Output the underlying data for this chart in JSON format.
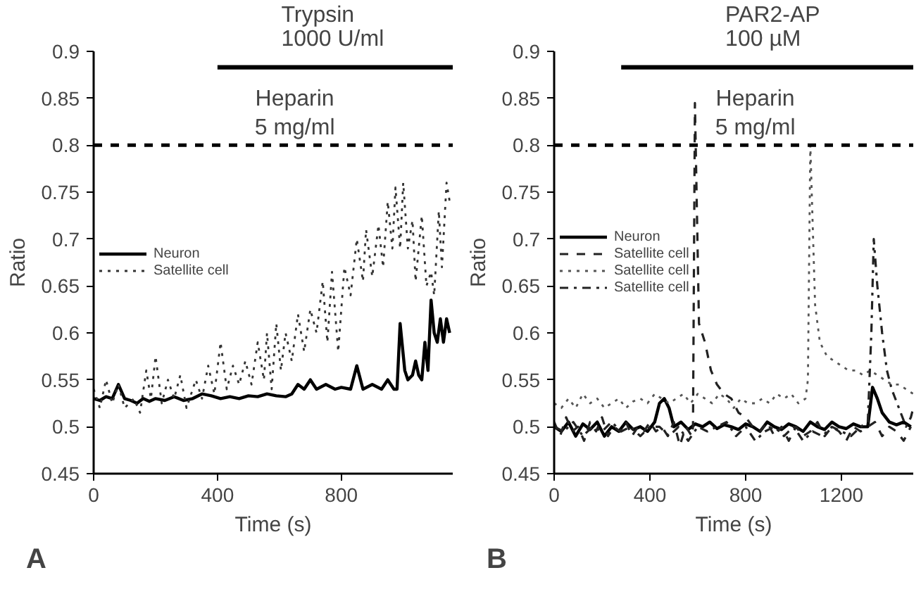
{
  "chart_data": [
    {
      "type": "line",
      "xlabel": "Time (s)",
      "ylabel": "Ratio",
      "xlim": [
        0,
        1160
      ],
      "xticks": [
        0,
        400,
        800
      ],
      "ylim": [
        0.45,
        0.9
      ],
      "yticks": [
        0.45,
        0.5,
        0.55,
        0.6,
        0.65,
        0.7,
        0.75,
        0.8,
        0.85,
        0.9
      ],
      "legend": "left",
      "series": [
        {
          "name": "Neuron",
          "color": "#000000",
          "line_style": "solid",
          "x": [
            0,
            20,
            40,
            60,
            80,
            100,
            120,
            140,
            160,
            180,
            200,
            230,
            260,
            290,
            320,
            350,
            380,
            410,
            440,
            470,
            500,
            530,
            560,
            590,
            620,
            640,
            660,
            680,
            700,
            720,
            750,
            780,
            800,
            830,
            850,
            870,
            900,
            930,
            950,
            970,
            980,
            990,
            1005,
            1015,
            1030,
            1040,
            1050,
            1060,
            1070,
            1080,
            1090,
            1100,
            1110,
            1120,
            1130,
            1140,
            1150
          ],
          "values": [
            0.53,
            0.528,
            0.532,
            0.53,
            0.545,
            0.53,
            0.528,
            0.525,
            0.53,
            0.527,
            0.53,
            0.528,
            0.532,
            0.528,
            0.53,
            0.535,
            0.533,
            0.53,
            0.532,
            0.53,
            0.533,
            0.532,
            0.535,
            0.533,
            0.532,
            0.535,
            0.545,
            0.54,
            0.55,
            0.54,
            0.545,
            0.54,
            0.542,
            0.54,
            0.565,
            0.54,
            0.545,
            0.54,
            0.55,
            0.54,
            0.54,
            0.61,
            0.56,
            0.55,
            0.555,
            0.57,
            0.555,
            0.55,
            0.59,
            0.56,
            0.635,
            0.6,
            0.59,
            0.615,
            0.59,
            0.615,
            0.6
          ]
        },
        {
          "name": "Satellite cell",
          "color": "#333333",
          "line_style": "dotted",
          "x": [
            0,
            20,
            40,
            60,
            80,
            100,
            130,
            150,
            170,
            185,
            200,
            220,
            240,
            260,
            280,
            300,
            330,
            350,
            370,
            390,
            410,
            430,
            450,
            470,
            490,
            510,
            530,
            550,
            560,
            575,
            590,
            605,
            620,
            640,
            660,
            680,
            700,
            720,
            740,
            755,
            770,
            790,
            810,
            830,
            850,
            870,
            880,
            900,
            920,
            935,
            950,
            965,
            975,
            990,
            1000,
            1015,
            1030,
            1040,
            1060,
            1075,
            1090,
            1100,
            1115,
            1125,
            1140,
            1150
          ],
          "values": [
            0.54,
            0.52,
            0.55,
            0.525,
            0.545,
            0.52,
            0.53,
            0.515,
            0.56,
            0.53,
            0.575,
            0.525,
            0.55,
            0.53,
            0.555,
            0.52,
            0.55,
            0.53,
            0.565,
            0.535,
            0.59,
            0.54,
            0.565,
            0.545,
            0.57,
            0.545,
            0.59,
            0.55,
            0.6,
            0.54,
            0.61,
            0.56,
            0.6,
            0.57,
            0.62,
            0.58,
            0.625,
            0.6,
            0.655,
            0.59,
            0.665,
            0.58,
            0.67,
            0.64,
            0.7,
            0.655,
            0.71,
            0.66,
            0.715,
            0.67,
            0.74,
            0.69,
            0.755,
            0.69,
            0.76,
            0.69,
            0.72,
            0.655,
            0.725,
            0.65,
            0.665,
            0.64,
            0.73,
            0.67,
            0.76,
            0.74
          ]
        },
        {
          "color": "#000000",
          "line_style": "solid",
          "x": [
            400,
            1160
          ],
          "values": [
            0.883,
            0.883
          ]
        }
      ],
      "ref_lines": [
        {
          "axis": "y",
          "value": 0.8,
          "label": "Heparin\n5 mg/ml",
          "color": "#000000",
          "line_style": "dashed"
        }
      ],
      "annotations": [
        {
          "text": "Trypsin\n1000 U/ml",
          "x": 780,
          "y": 0.883
        },
        "A"
      ]
    },
    {
      "type": "line",
      "xlabel": "Time (s)",
      "ylabel": "Ratio",
      "xlim": [
        0,
        1500
      ],
      "xticks": [
        0,
        400,
        800,
        1200
      ],
      "ylim": [
        0.45,
        0.9
      ],
      "yticks": [
        0.45,
        0.5,
        0.55,
        0.6,
        0.65,
        0.7,
        0.75,
        0.8,
        0.85,
        0.9
      ],
      "legend": "left",
      "series": [
        {
          "name": "Neuron",
          "color": "#000000",
          "line_style": "solid",
          "x": [
            0,
            30,
            60,
            90,
            120,
            150,
            180,
            210,
            240,
            270,
            300,
            330,
            360,
            390,
            420,
            440,
            460,
            480,
            500,
            530,
            560,
            590,
            620,
            650,
            680,
            710,
            740,
            770,
            800,
            830,
            860,
            890,
            920,
            950,
            980,
            1010,
            1040,
            1070,
            1100,
            1130,
            1160,
            1190,
            1220,
            1250,
            1280,
            1310,
            1330,
            1350,
            1370,
            1400,
            1430,
            1460,
            1490
          ],
          "values": [
            0.5,
            0.495,
            0.505,
            0.49,
            0.503,
            0.497,
            0.505,
            0.49,
            0.5,
            0.495,
            0.505,
            0.497,
            0.5,
            0.495,
            0.505,
            0.525,
            0.53,
            0.52,
            0.5,
            0.505,
            0.497,
            0.503,
            0.5,
            0.505,
            0.498,
            0.502,
            0.5,
            0.497,
            0.503,
            0.5,
            0.495,
            0.505,
            0.5,
            0.497,
            0.503,
            0.5,
            0.495,
            0.505,
            0.5,
            0.497,
            0.505,
            0.5,
            0.498,
            0.503,
            0.5,
            0.5,
            0.542,
            0.53,
            0.515,
            0.505,
            0.502,
            0.505,
            0.5
          ]
        },
        {
          "name": "Satellite cell",
          "color": "#222222",
          "line_style": "dashed",
          "x": [
            0,
            25,
            50,
            75,
            100,
            125,
            150,
            175,
            200,
            225,
            250,
            275,
            300,
            325,
            350,
            375,
            400,
            425,
            450,
            475,
            500,
            525,
            550,
            575,
            580,
            588,
            605,
            630,
            655,
            680,
            710,
            740,
            770,
            800,
            830,
            860,
            890,
            920,
            950,
            980,
            1010,
            1040,
            1070,
            1100,
            1130,
            1160,
            1190,
            1220,
            1250,
            1280,
            1310,
            1340,
            1370,
            1400,
            1430,
            1460,
            1490
          ],
          "values": [
            0.505,
            0.49,
            0.51,
            0.495,
            0.5,
            0.485,
            0.505,
            0.495,
            0.51,
            0.49,
            0.5,
            0.495,
            0.505,
            0.49,
            0.5,
            0.495,
            0.505,
            0.495,
            0.5,
            0.49,
            0.505,
            0.48,
            0.5,
            0.49,
            0.5,
            0.845,
            0.61,
            0.59,
            0.56,
            0.545,
            0.535,
            0.53,
            0.515,
            0.51,
            0.5,
            0.495,
            0.505,
            0.49,
            0.5,
            0.485,
            0.5,
            0.49,
            0.495,
            0.505,
            0.49,
            0.5,
            0.495,
            0.485,
            0.5,
            0.495,
            0.5,
            0.505,
            0.49,
            0.5,
            0.495,
            0.485,
            0.5
          ]
        },
        {
          "name": "Satellite cell",
          "color": "#555555",
          "line_style": "dotted",
          "x": [
            0,
            30,
            60,
            90,
            120,
            150,
            180,
            210,
            240,
            270,
            300,
            330,
            360,
            390,
            420,
            450,
            480,
            510,
            540,
            570,
            600,
            630,
            660,
            690,
            720,
            750,
            780,
            810,
            840,
            870,
            900,
            930,
            960,
            990,
            1020,
            1050,
            1060,
            1070,
            1090,
            1110,
            1140,
            1170,
            1200,
            1230,
            1260,
            1290,
            1320,
            1350,
            1380,
            1410,
            1440,
            1470,
            1500
          ],
          "values": [
            0.525,
            0.52,
            0.53,
            0.52,
            0.535,
            0.525,
            0.53,
            0.52,
            0.525,
            0.53,
            0.52,
            0.527,
            0.53,
            0.525,
            0.535,
            0.53,
            0.525,
            0.53,
            0.535,
            0.525,
            0.535,
            0.53,
            0.525,
            0.535,
            0.53,
            0.52,
            0.53,
            0.525,
            0.525,
            0.53,
            0.525,
            0.535,
            0.53,
            0.535,
            0.525,
            0.53,
            0.55,
            0.8,
            0.63,
            0.59,
            0.575,
            0.57,
            0.565,
            0.56,
            0.56,
            0.555,
            0.56,
            0.555,
            0.55,
            0.545,
            0.545,
            0.54,
            0.535
          ]
        },
        {
          "name": "Satellite cell",
          "color": "#222222",
          "line_style": "dashdot",
          "x": [
            0,
            40,
            80,
            120,
            160,
            200,
            240,
            280,
            320,
            360,
            400,
            440,
            480,
            520,
            560,
            600,
            640,
            680,
            720,
            760,
            800,
            840,
            880,
            920,
            960,
            1000,
            1040,
            1080,
            1120,
            1160,
            1200,
            1240,
            1280,
            1310,
            1325,
            1335,
            1350,
            1370,
            1390,
            1410,
            1440,
            1470,
            1490,
            1500
          ],
          "values": [
            0.5,
            0.495,
            0.505,
            0.49,
            0.5,
            0.495,
            0.505,
            0.495,
            0.5,
            0.49,
            0.5,
            0.5,
            0.49,
            0.5,
            0.485,
            0.5,
            0.495,
            0.5,
            0.505,
            0.49,
            0.5,
            0.485,
            0.495,
            0.5,
            0.49,
            0.5,
            0.485,
            0.495,
            0.49,
            0.5,
            0.495,
            0.49,
            0.5,
            0.505,
            0.6,
            0.7,
            0.65,
            0.6,
            0.56,
            0.54,
            0.52,
            0.5,
            0.51,
            0.52
          ]
        },
        {
          "color": "#000000",
          "line_style": "solid",
          "x": [
            280,
            1500
          ],
          "values": [
            0.883,
            0.883
          ]
        }
      ],
      "ref_lines": [
        {
          "axis": "y",
          "value": 0.8,
          "label": "Heparin\n5 mg/ml",
          "color": "#000000",
          "line_style": "dashed"
        }
      ],
      "annotations": [
        {
          "text": "PAR2-AP\n100 µM",
          "x": 890,
          "y": 0.883
        },
        "B"
      ]
    }
  ]
}
